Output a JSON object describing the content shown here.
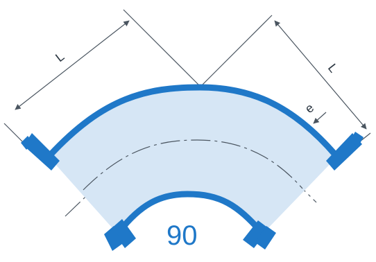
{
  "diagram": {
    "labels": {
      "length_left": "L",
      "length_right": "L",
      "wall_thickness": "e",
      "angle": "90"
    },
    "colors": {
      "fitting_fill": "#d6e6f5",
      "fitting_wall": "#1f78c8",
      "dimension_lines": "#4a5560",
      "angle_text": "#1f78c8"
    }
  }
}
